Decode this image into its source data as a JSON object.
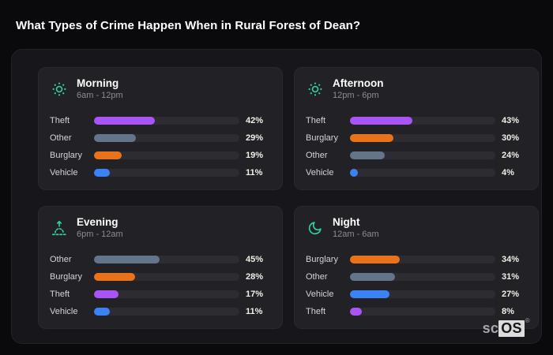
{
  "page": {
    "title": "What Types of Crime Happen When in Rural Forest of Dean?"
  },
  "brand": {
    "prefix": "sc",
    "suffix": "OS",
    "registered": "®"
  },
  "colors": {
    "accent_icon": "#2fd0a4",
    "bar_track": "#2c2c32",
    "categories": {
      "Theft": "#a855f7",
      "Other": "#64748b",
      "Burglary": "#e8731a",
      "Vehicle": "#3b82f6"
    }
  },
  "chart_data": [
    {
      "type": "bar",
      "orientation": "horizontal",
      "title": "Morning",
      "subtitle": "6am - 12pm",
      "icon": "sun-icon",
      "categories": [
        "Theft",
        "Other",
        "Burglary",
        "Vehicle"
      ],
      "values": [
        42,
        29,
        19,
        11
      ],
      "unit": "%",
      "xlim": [
        0,
        100
      ]
    },
    {
      "type": "bar",
      "orientation": "horizontal",
      "title": "Afternoon",
      "subtitle": "12pm - 6pm",
      "icon": "sun-icon",
      "categories": [
        "Theft",
        "Burglary",
        "Other",
        "Vehicle"
      ],
      "values": [
        43,
        30,
        24,
        4
      ],
      "unit": "%",
      "xlim": [
        0,
        100
      ]
    },
    {
      "type": "bar",
      "orientation": "horizontal",
      "title": "Evening",
      "subtitle": "6pm - 12am",
      "icon": "sunrise-icon",
      "categories": [
        "Other",
        "Burglary",
        "Theft",
        "Vehicle"
      ],
      "values": [
        45,
        28,
        17,
        11
      ],
      "unit": "%",
      "xlim": [
        0,
        100
      ]
    },
    {
      "type": "bar",
      "orientation": "horizontal",
      "title": "Night",
      "subtitle": "12am - 6am",
      "icon": "moon-icon",
      "categories": [
        "Burglary",
        "Other",
        "Vehicle",
        "Theft"
      ],
      "values": [
        34,
        31,
        27,
        8
      ],
      "unit": "%",
      "xlim": [
        0,
        100
      ]
    }
  ]
}
